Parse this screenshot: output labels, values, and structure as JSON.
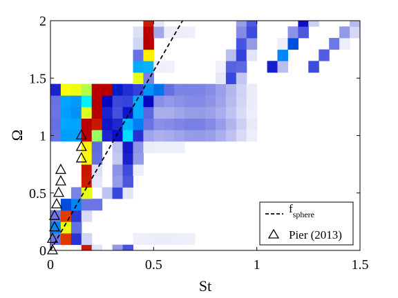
{
  "chart_data": {
    "type": "heatmap",
    "xlabel": "St",
    "ylabel": "Ω",
    "xlim": [
      0,
      1.5
    ],
    "ylim": [
      0,
      2
    ],
    "x_ticks": [
      {
        "value": 0,
        "label": "0"
      },
      {
        "value": 0.5,
        "label": "0.5"
      },
      {
        "value": 1,
        "label": "1"
      },
      {
        "value": 1.5,
        "label": "1.5"
      }
    ],
    "y_ticks": [
      {
        "value": 0,
        "label": "0"
      },
      {
        "value": 0.5,
        "label": "0.5"
      },
      {
        "value": 1,
        "label": "1"
      },
      {
        "value": 1.5,
        "label": "1.5"
      },
      {
        "value": 2,
        "label": "2"
      }
    ],
    "colormap": "jet on white (low = white, high = dark red)",
    "omega_step": 0.1,
    "peak_band": [
      {
        "omega": 0.0,
        "st": 0.18
      },
      {
        "omega": 0.1,
        "st": 0.06
      },
      {
        "omega": 0.2,
        "st": 0.05
      },
      {
        "omega": 0.3,
        "st": 0.06
      },
      {
        "omega": 0.4,
        "st": 0.1
      },
      {
        "omega": 0.5,
        "st": 0.16
      },
      {
        "omega": 0.6,
        "st": 0.18
      },
      {
        "omega": 0.7,
        "st": 0.18
      },
      {
        "omega": 0.8,
        "st": 0.19
      },
      {
        "omega": 0.9,
        "st": 0.19
      },
      {
        "omega": 1.0,
        "st": 0.19
      },
      {
        "omega": 1.1,
        "st": 0.2
      },
      {
        "omega": 1.2,
        "st": 0.21
      },
      {
        "omega": 1.3,
        "st": 0.22
      },
      {
        "omega": 1.4,
        "st": 0.25
      },
      {
        "omega": 1.5,
        "st": 0.44
      },
      {
        "omega": 1.6,
        "st": 0.45
      },
      {
        "omega": 1.7,
        "st": 0.46
      },
      {
        "omega": 1.8,
        "st": 0.47
      },
      {
        "omega": 1.9,
        "st": 0.48
      },
      {
        "omega": 2.0,
        "st": 0.48
      }
    ],
    "broadband_rows": [
      1.0,
      1.1,
      1.2,
      1.3,
      1.4
    ],
    "series": [
      {
        "name": "f_sphere",
        "style": "dashed black line",
        "points": [
          [
            0,
            0
          ],
          [
            0.64,
            2.0
          ]
        ]
      },
      {
        "name": "Pier (2013)",
        "style": "open triangles",
        "points": [
          [
            0.01,
            0.0
          ],
          [
            0.01,
            0.1
          ],
          [
            0.02,
            0.2
          ],
          [
            0.02,
            0.3
          ],
          [
            0.03,
            0.4
          ],
          [
            0.04,
            0.5
          ],
          [
            0.05,
            0.6
          ],
          [
            0.05,
            0.7
          ],
          [
            0.15,
            0.8
          ],
          [
            0.15,
            0.9
          ],
          [
            0.15,
            1.0
          ]
        ]
      }
    ],
    "legend": {
      "position": "bottom-right",
      "entries": [
        {
          "symbol": "dashed-line",
          "text": "f",
          "sub": "sphere"
        },
        {
          "symbol": "triangle",
          "text": "Pier (2013)",
          "sub": ""
        }
      ]
    }
  }
}
